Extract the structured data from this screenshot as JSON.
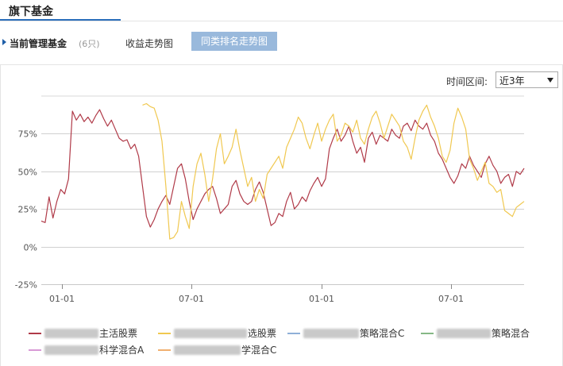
{
  "header": {
    "title": "旗下基金"
  },
  "subnav": {
    "label": "当前管理基金",
    "count": "(6只)",
    "tab_return_trend": "收益走势图",
    "tab_rank_trend": "同类排名走势图"
  },
  "range": {
    "label": "时间区间:",
    "value": "近3年"
  },
  "colors": {
    "series1": "#b03a48",
    "series2": "#f0c850",
    "series3": "#8fb0d8",
    "series4": "#86b886",
    "series5": "#d89ad6",
    "series6": "#f0b070",
    "accent": "#2a6ebb",
    "tab_active": "#99b9dc"
  },
  "legend": [
    {
      "visible_text": "主活股票"
    },
    {
      "visible_text": "选股票"
    },
    {
      "visible_text": "策略混合C"
    },
    {
      "visible_text": "策略混合"
    },
    {
      "visible_text": "科学混合A"
    },
    {
      "visible_text": "学混合C"
    }
  ],
  "chart_data": {
    "type": "line",
    "x_tick_labels": [
      "01-01",
      "07-01",
      "01-01",
      "07-01"
    ],
    "y_tick_labels": [
      "75%",
      "50%",
      "25%",
      "0%",
      "-25%"
    ],
    "ylim": [
      -25,
      100
    ],
    "grid": true,
    "series": [
      {
        "values": [
          17,
          16,
          33,
          19,
          30,
          38,
          35,
          45,
          90,
          84,
          88,
          83,
          86,
          82,
          87,
          91,
          85,
          80,
          84,
          78,
          72,
          70,
          71,
          65,
          68,
          60,
          40,
          20,
          13,
          18,
          25,
          30,
          34,
          28,
          40,
          52,
          55,
          45,
          30,
          18,
          25,
          30,
          35,
          38,
          40,
          32,
          22,
          25,
          28,
          40,
          44,
          35,
          30,
          28,
          30,
          38,
          43,
          36,
          25,
          14,
          16,
          22,
          20,
          30,
          36,
          25,
          28,
          33,
          30,
          37,
          42,
          46,
          40,
          45,
          65,
          72,
          78,
          70,
          74,
          80,
          70,
          62,
          66,
          56,
          72,
          76,
          68,
          74,
          72,
          70,
          78,
          74,
          72,
          80,
          82,
          77,
          84,
          80,
          78,
          82,
          74,
          70,
          62,
          58,
          52,
          46,
          42,
          47,
          55,
          52,
          60,
          54,
          50,
          46,
          55,
          60,
          54,
          50,
          42,
          46,
          48,
          40,
          50,
          48,
          52
        ]
      },
      {
        "values": [
          null,
          null,
          null,
          null,
          null,
          null,
          null,
          null,
          null,
          null,
          null,
          null,
          null,
          null,
          null,
          null,
          null,
          null,
          null,
          null,
          null,
          null,
          null,
          null,
          null,
          null,
          94,
          95,
          93,
          92,
          84,
          70,
          40,
          5,
          6,
          10,
          30,
          20,
          12,
          40,
          55,
          62,
          48,
          30,
          45,
          65,
          75,
          55,
          60,
          66,
          78,
          64,
          52,
          40,
          46,
          30,
          38,
          32,
          48,
          52,
          56,
          60,
          52,
          66,
          72,
          78,
          86,
          82,
          72,
          65,
          74,
          82,
          70,
          78,
          84,
          88,
          70,
          74,
          82,
          80,
          76,
          84,
          72,
          68,
          78,
          86,
          90,
          82,
          72,
          80,
          88,
          84,
          80,
          70,
          66,
          58,
          72,
          84,
          90,
          94,
          86,
          80,
          72,
          60,
          56,
          64,
          82,
          92,
          86,
          78,
          58,
          52,
          44,
          50,
          56,
          42,
          40,
          36,
          38,
          24,
          22,
          20,
          26,
          28,
          30
        ]
      }
    ]
  }
}
